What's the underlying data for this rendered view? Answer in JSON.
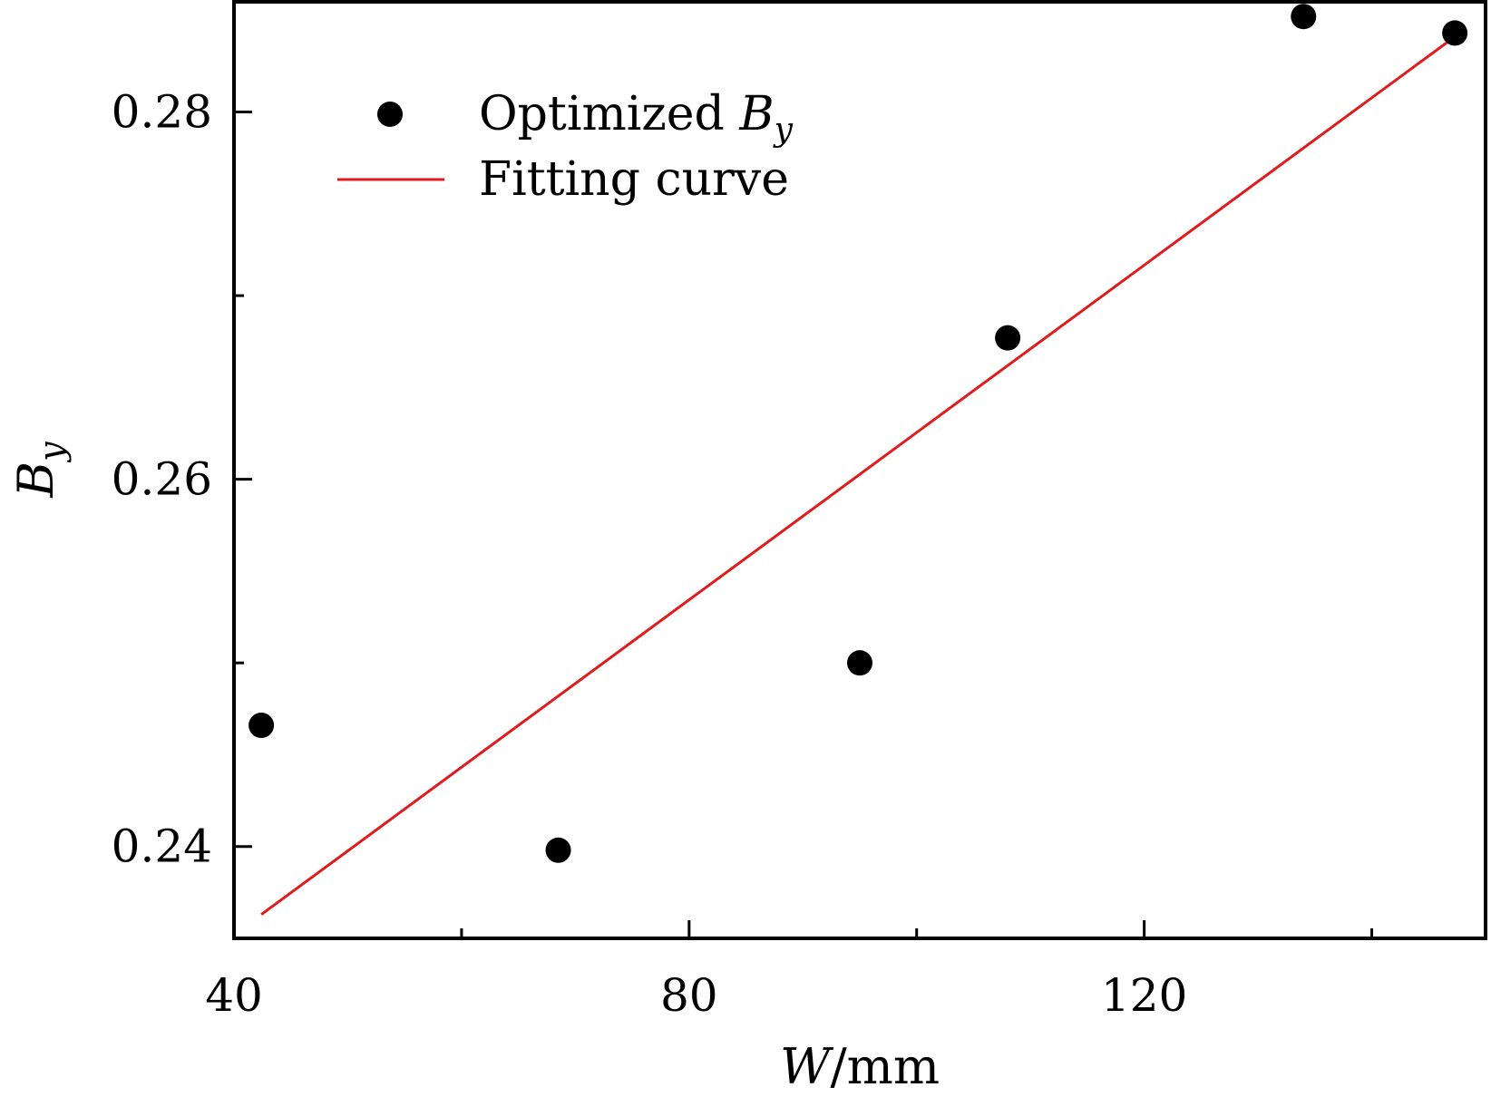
{
  "chart_data": {
    "type": "scatter",
    "xlabel": {
      "var": "W",
      "unit": "/mm"
    },
    "ylabel": {
      "var": "B",
      "sub": "y"
    },
    "xlim": [
      40,
      150
    ],
    "ylim": [
      0.235,
      0.286
    ],
    "x_ticks": [
      40,
      80,
      120
    ],
    "x_minor_ticks": [
      60,
      100,
      140
    ],
    "x_tick_labels": [
      "40",
      "80",
      "120"
    ],
    "y_ticks": [
      0.24,
      0.26,
      0.28
    ],
    "y_minor_ticks": [
      0.25,
      0.27
    ],
    "y_tick_labels": [
      "0.24",
      "0.26",
      "0.28"
    ],
    "legend_position": "top-left",
    "series": [
      {
        "name": "Optimized By",
        "name_parts": {
          "text": "Optimized ",
          "var": "B",
          "sub": "y"
        },
        "kind": "scatter",
        "color": "#000000",
        "x": [
          42.4,
          68.5,
          95.0,
          108.0,
          134.0,
          147.3
        ],
        "y": [
          0.2466,
          0.2398,
          0.25,
          0.2677,
          0.2852,
          0.2843
        ]
      },
      {
        "name": "Fitting curve",
        "kind": "line",
        "color": "#e31a1c",
        "x": [
          42.4,
          147.3
        ],
        "y": [
          0.2363,
          0.2841
        ]
      }
    ]
  }
}
